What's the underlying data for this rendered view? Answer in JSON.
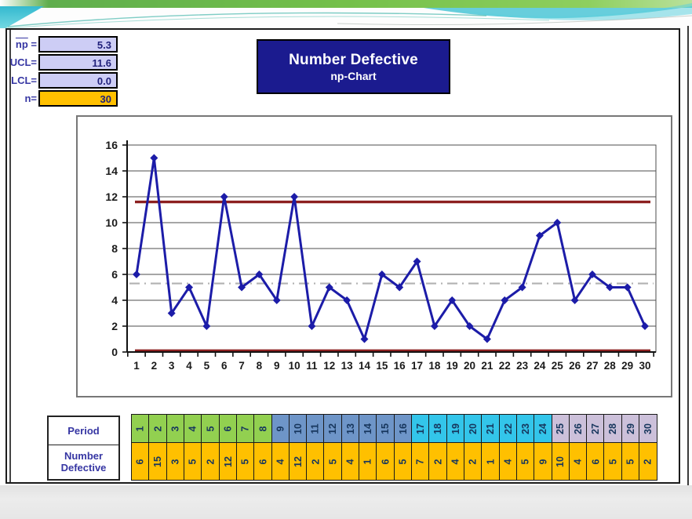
{
  "stats": {
    "rows": [
      {
        "label": "np =",
        "overline": "np",
        "value": "5.3",
        "bg": "#cdcdf5"
      },
      {
        "label": "UCL=",
        "overline": "",
        "value": "11.6",
        "bg": "#cdcdf5"
      },
      {
        "label": "LCL=",
        "overline": "",
        "value": "0.0",
        "bg": "#cdcdf5"
      },
      {
        "label": "n=",
        "overline": "",
        "value": "30",
        "bg": "#ffc000"
      }
    ]
  },
  "title": {
    "line1": "Number Defective",
    "line2": "np-Chart"
  },
  "chart_data": {
    "type": "line",
    "title": "Number Defective np-Chart",
    "x": [
      1,
      2,
      3,
      4,
      5,
      6,
      7,
      8,
      9,
      10,
      11,
      12,
      13,
      14,
      15,
      16,
      17,
      18,
      19,
      20,
      21,
      22,
      23,
      24,
      25,
      26,
      27,
      28,
      29,
      30
    ],
    "series": [
      {
        "name": "Number Defective",
        "values": [
          6,
          15,
          3,
          5,
          2,
          12,
          5,
          6,
          4,
          12,
          2,
          5,
          4,
          1,
          6,
          5,
          7,
          2,
          4,
          2,
          1,
          4,
          5,
          9,
          10,
          4,
          6,
          5,
          5,
          2
        ]
      }
    ],
    "control_lines": {
      "ucl": 11.6,
      "center": 5.3,
      "lcl": 0.0
    },
    "ylim": [
      0,
      16
    ],
    "ytick_step": 2,
    "xlabel": "",
    "ylabel": "",
    "grid": true,
    "legend_position": "none",
    "colors": {
      "series": "#1c1ca8",
      "ucl_lcl": "#8c2020",
      "center": "#b2b2b2",
      "grid": "#4d4d4d",
      "axis": "#111111",
      "tick_text": "#1a1a1a"
    }
  },
  "table": {
    "row1_label": "Period",
    "row2_label_line1": "Number",
    "row2_label_line2": "Defective",
    "periods": [
      1,
      2,
      3,
      4,
      5,
      6,
      7,
      8,
      9,
      10,
      11,
      12,
      13,
      14,
      15,
      16,
      17,
      18,
      19,
      20,
      21,
      22,
      23,
      24,
      25,
      26,
      27,
      28,
      29,
      30
    ],
    "values": [
      6,
      15,
      3,
      5,
      2,
      12,
      5,
      6,
      4,
      12,
      2,
      5,
      4,
      1,
      6,
      5,
      7,
      2,
      4,
      2,
      1,
      4,
      5,
      9,
      10,
      4,
      6,
      5,
      5,
      2
    ],
    "period_groups": [
      {
        "from": 1,
        "to": 8,
        "color": "#92d050"
      },
      {
        "from": 9,
        "to": 16,
        "color": "#6e95c8"
      },
      {
        "from": 17,
        "to": 24,
        "color": "#33c5ea"
      },
      {
        "from": 25,
        "to": 30,
        "color": "#ccc0da"
      }
    ],
    "value_bg": "#ffc000"
  }
}
